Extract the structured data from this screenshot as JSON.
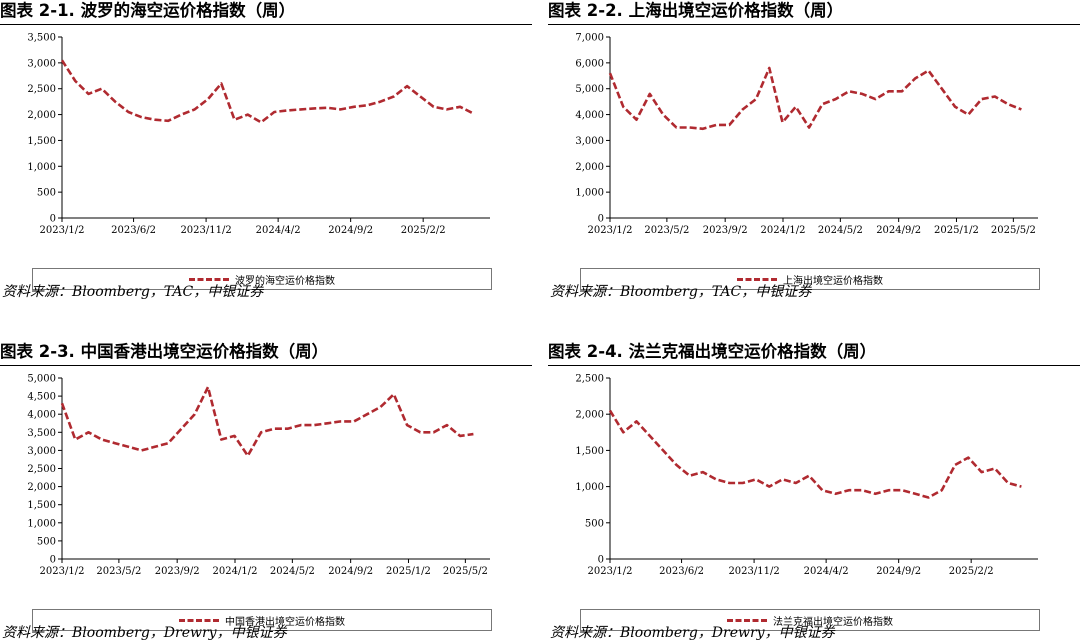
{
  "colors": {
    "series": "#b02a30",
    "axis": "#000000"
  },
  "charts": [
    {
      "title": "图表 2-1. 波罗的海空运价格指数（周）",
      "source": "资料来源：Bloomberg，TAC，中银证券",
      "chart_data": {
        "type": "line",
        "series": [
          {
            "name": "波罗的海空运价格指数",
            "x": [
              "2023/1/2",
              "2023/1/30",
              "2023/2/27",
              "2023/3/27",
              "2023/4/24",
              "2023/5/22",
              "2023/6/19",
              "2023/7/17",
              "2023/8/14",
              "2023/9/11",
              "2023/10/9",
              "2023/11/6",
              "2023/12/4",
              "2024/1/1",
              "2024/1/29",
              "2024/2/26",
              "2024/3/25",
              "2024/4/22",
              "2024/5/20",
              "2024/6/17",
              "2024/7/15",
              "2024/8/12",
              "2024/9/9",
              "2024/10/7",
              "2024/11/4",
              "2024/12/2",
              "2024/12/30",
              "2025/1/27",
              "2025/2/24",
              "2025/3/24",
              "2025/4/21",
              "2025/5/19"
            ],
            "values": [
              3050,
              2650,
              2400,
              2500,
              2250,
              2050,
              1950,
              1900,
              1880,
              2000,
              2100,
              2300,
              2600,
              1900,
              2000,
              1850,
              2050,
              2080,
              2100,
              2120,
              2130,
              2100,
              2150,
              2180,
              2250,
              2350,
              2550,
              2350,
              2150,
              2100,
              2150,
              2020
            ]
          }
        ],
        "xticks": [
          "2023/1/2",
          "2023/6/2",
          "2023/11/2",
          "2024/4/2",
          "2024/9/2",
          "2025/2/2"
        ],
        "yticks": [
          "0",
          "500",
          "1,000",
          "1,500",
          "2,000",
          "2,500",
          "3,000",
          "3,500"
        ],
        "ylim": [
          0,
          3500
        ]
      }
    },
    {
      "title": "图表 2-2. 上海出境空运价格指数（周）",
      "source": "资料来源：Bloomberg，TAC，中银证券",
      "chart_data": {
        "type": "line",
        "series": [
          {
            "name": "上海出境空运价格指数",
            "x": [
              "2023/1/2",
              "2023/1/30",
              "2023/2/27",
              "2023/3/27",
              "2023/4/24",
              "2023/5/22",
              "2023/6/19",
              "2023/7/17",
              "2023/8/14",
              "2023/9/11",
              "2023/10/9",
              "2023/11/6",
              "2023/12/4",
              "2024/1/1",
              "2024/1/29",
              "2024/2/26",
              "2024/3/25",
              "2024/4/22",
              "2024/5/20",
              "2024/6/17",
              "2024/7/15",
              "2024/8/12",
              "2024/9/9",
              "2024/10/7",
              "2024/11/4",
              "2024/12/2",
              "2024/12/30",
              "2025/1/27",
              "2025/2/24",
              "2025/3/24",
              "2025/4/21",
              "2025/5/19"
            ],
            "values": [
              5600,
              4300,
              3800,
              4800,
              4000,
              3500,
              3500,
              3450,
              3600,
              3600,
              4200,
              4600,
              5800,
              3700,
              4300,
              3500,
              4400,
              4600,
              4900,
              4800,
              4600,
              4900,
              4900,
              5400,
              5700,
              5000,
              4300,
              4000,
              4600,
              4700,
              4400,
              4200
            ]
          }
        ],
        "xticks": [
          "2023/1/2",
          "2023/5/2",
          "2023/9/2",
          "2024/1/2",
          "2024/5/2",
          "2024/9/2",
          "2025/1/2",
          "2025/5/2"
        ],
        "yticks": [
          "0",
          "1,000",
          "2,000",
          "3,000",
          "4,000",
          "5,000",
          "6,000",
          "7,000"
        ],
        "ylim": [
          0,
          7000
        ]
      }
    },
    {
      "title": "图表 2-3. 中国香港出境空运价格指数（周）",
      "source": "资料来源：Bloomberg，Drewry，中银证券",
      "chart_data": {
        "type": "line",
        "series": [
          {
            "name": "中国香港出境空运价格指数",
            "x": [
              "2023/1/2",
              "2023/1/30",
              "2023/2/27",
              "2023/3/27",
              "2023/4/24",
              "2023/5/22",
              "2023/6/19",
              "2023/7/17",
              "2023/8/14",
              "2023/9/11",
              "2023/10/9",
              "2023/11/6",
              "2023/12/4",
              "2024/1/1",
              "2024/1/29",
              "2024/2/26",
              "2024/3/25",
              "2024/4/22",
              "2024/5/20",
              "2024/6/17",
              "2024/7/15",
              "2024/8/12",
              "2024/9/9",
              "2024/10/7",
              "2024/11/4",
              "2024/12/2",
              "2024/12/30",
              "2025/1/27",
              "2025/2/24",
              "2025/3/24",
              "2025/4/21",
              "2025/5/19"
            ],
            "values": [
              4300,
              3300,
              3500,
              3300,
              3200,
              3100,
              3000,
              3100,
              3200,
              3600,
              4000,
              4750,
              3300,
              3400,
              2850,
              3500,
              3600,
              3600,
              3700,
              3700,
              3750,
              3800,
              3800,
              4000,
              4200,
              4550,
              3700,
              3500,
              3500,
              3700,
              3400,
              3450
            ]
          }
        ],
        "xticks": [
          "2023/1/2",
          "2023/5/2",
          "2023/9/2",
          "2024/1/2",
          "2024/5/2",
          "2024/9/2",
          "2025/1/2",
          "2025/5/2"
        ],
        "yticks": [
          "0",
          "500",
          "1,000",
          "1,500",
          "2,000",
          "2,500",
          "3,000",
          "3,500",
          "4,000",
          "4,500",
          "5,000"
        ],
        "ylim": [
          0,
          5000
        ]
      }
    },
    {
      "title": "图表 2-4. 法兰克福出境空运价格指数（周）",
      "source": "资料来源：Bloomberg，Drewry，中银证券",
      "chart_data": {
        "type": "line",
        "series": [
          {
            "name": "法兰克福出境空运价格指数",
            "x": [
              "2023/1/2",
              "2023/1/30",
              "2023/2/27",
              "2023/3/27",
              "2023/4/24",
              "2023/5/22",
              "2023/6/19",
              "2023/7/17",
              "2023/8/14",
              "2023/9/11",
              "2023/10/9",
              "2023/11/6",
              "2023/12/4",
              "2024/1/1",
              "2024/1/29",
              "2024/2/26",
              "2024/3/25",
              "2024/4/22",
              "2024/5/20",
              "2024/6/17",
              "2024/7/15",
              "2024/8/12",
              "2024/9/9",
              "2024/10/7",
              "2024/11/4",
              "2024/12/2",
              "2024/12/30",
              "2025/1/27",
              "2025/2/24",
              "2025/3/24",
              "2025/4/21",
              "2025/5/19"
            ],
            "values": [
              2050,
              1750,
              1900,
              1700,
              1500,
              1300,
              1150,
              1200,
              1100,
              1050,
              1050,
              1100,
              1000,
              1100,
              1050,
              1150,
              950,
              900,
              950,
              950,
              900,
              950,
              950,
              900,
              850,
              950,
              1300,
              1400,
              1200,
              1250,
              1050,
              1000
            ]
          }
        ],
        "xticks": [
          "2023/1/2",
          "2023/6/2",
          "2023/11/2",
          "2024/4/2",
          "2024/9/2",
          "2025/2/2"
        ],
        "yticks": [
          "0",
          "500",
          "1,000",
          "1,500",
          "2,000",
          "2,500"
        ],
        "ylim": [
          0,
          2500
        ]
      }
    }
  ]
}
